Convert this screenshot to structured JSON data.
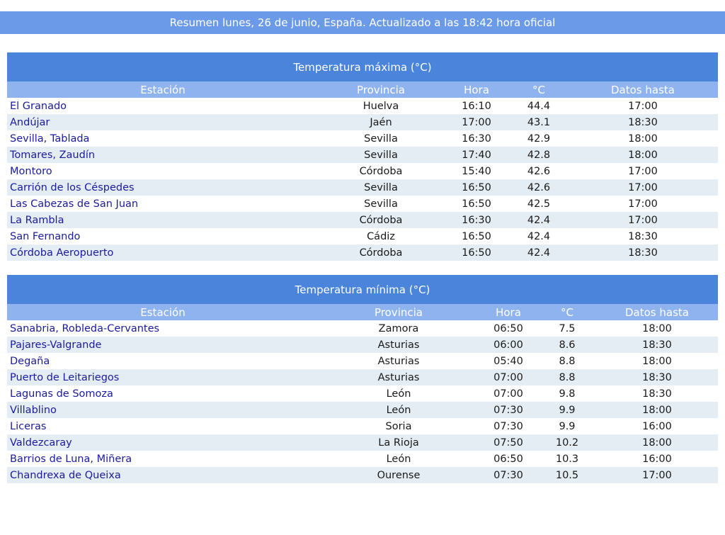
{
  "summary": "Resumen lunes, 26 de junio, España. Actualizado a las 18:42 hora oficial",
  "tables": [
    {
      "title": "Temperatura máxima (°C)",
      "headers": [
        "Estación",
        "Provincia",
        "Hora",
        "°C",
        "Datos hasta"
      ],
      "rows": [
        [
          "El Granado",
          "Huelva",
          "16:10",
          "44.4",
          "17:00"
        ],
        [
          "Andújar",
          "Jaén",
          "17:00",
          "43.1",
          "18:30"
        ],
        [
          "Sevilla, Tablada",
          "Sevilla",
          "16:30",
          "42.9",
          "18:00"
        ],
        [
          "Tomares, Zaudín",
          "Sevilla",
          "17:40",
          "42.8",
          "18:00"
        ],
        [
          "Montoro",
          "Córdoba",
          "15:40",
          "42.6",
          "17:00"
        ],
        [
          "Carrión de los Céspedes",
          "Sevilla",
          "16:50",
          "42.6",
          "17:00"
        ],
        [
          "Las Cabezas de San Juan",
          "Sevilla",
          "16:50",
          "42.5",
          "17:00"
        ],
        [
          "La Rambla",
          "Córdoba",
          "16:30",
          "42.4",
          "17:00"
        ],
        [
          "San Fernando",
          "Cádiz",
          "16:50",
          "42.4",
          "18:30"
        ],
        [
          "Córdoba Aeropuerto",
          "Córdoba",
          "16:50",
          "42.4",
          "18:30"
        ]
      ]
    },
    {
      "title": "Temperatura mínima (°C)",
      "headers": [
        "Estación",
        "Provincia",
        "Hora",
        "°C",
        "Datos hasta"
      ],
      "rows": [
        [
          "Sanabria, Robleda-Cervantes",
          "Zamora",
          "06:50",
          "7.5",
          "18:00"
        ],
        [
          "Pajares-Valgrande",
          "Asturias",
          "06:00",
          "8.6",
          "18:30"
        ],
        [
          "Degaña",
          "Asturias",
          "05:40",
          "8.8",
          "18:00"
        ],
        [
          "Puerto de Leitariegos",
          "Asturias",
          "07:00",
          "8.8",
          "18:30"
        ],
        [
          "Lagunas de Somoza",
          "León",
          "07:00",
          "9.8",
          "18:30"
        ],
        [
          "Villablino",
          "León",
          "07:30",
          "9.9",
          "18:00"
        ],
        [
          "Liceras",
          "Soria",
          "07:30",
          "9.9",
          "16:00"
        ],
        [
          "Valdezcaray",
          "La Rioja",
          "07:50",
          "10.2",
          "18:00"
        ],
        [
          "Barrios de Luna, Miñera",
          "León",
          "06:50",
          "10.3",
          "16:00"
        ],
        [
          "Chandrexa de Queixa",
          "Ourense",
          "07:30",
          "10.5",
          "17:00"
        ]
      ]
    }
  ]
}
